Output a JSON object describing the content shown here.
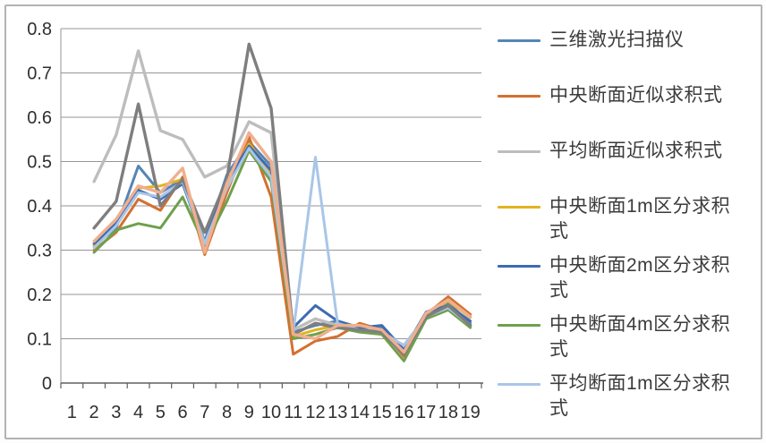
{
  "chart_data": {
    "type": "line",
    "title": "",
    "x_categories": [
      "1",
      "2",
      "3",
      "4",
      "5",
      "6",
      "7",
      "8",
      "9",
      "10",
      "11",
      "12",
      "13",
      "14",
      "15",
      "16",
      "17",
      "18",
      "19"
    ],
    "ylim": [
      0,
      0.8
    ],
    "ytick_labels": [
      "0",
      "0.1",
      "0.2",
      "0.3",
      "0.4",
      "0.5",
      "0.6",
      "0.7",
      "0.8"
    ],
    "grid": true,
    "legend_position": "right",
    "series": [
      {
        "name": "三维激光扫描仪",
        "color": "#5586B4",
        "in_legend": true,
        "values": [
          null,
          0.31,
          0.35,
          0.49,
          0.43,
          0.46,
          0.32,
          0.47,
          0.545,
          0.49,
          0.115,
          0.13,
          0.14,
          0.125,
          0.125,
          0.07,
          0.16,
          0.18,
          0.135
        ]
      },
      {
        "name": "中央断面近似求积式",
        "color": "#D4702F",
        "in_legend": true,
        "values": [
          null,
          0.3,
          0.34,
          0.415,
          0.39,
          0.465,
          0.29,
          0.43,
          0.555,
          0.42,
          0.065,
          0.095,
          0.105,
          0.135,
          0.12,
          0.06,
          0.155,
          0.195,
          0.155
        ]
      },
      {
        "name": "平均断面近似求积式",
        "color": "#BDBDBD",
        "in_legend": true,
        "values": [
          null,
          0.455,
          0.56,
          0.75,
          0.57,
          0.55,
          0.465,
          0.49,
          0.59,
          0.565,
          0.12,
          0.145,
          0.13,
          0.12,
          0.11,
          0.085,
          0.15,
          0.17,
          0.13
        ]
      },
      {
        "name": "中央断面1m区分求积式",
        "color": "#E0B41F",
        "in_legend": true,
        "values": [
          null,
          0.31,
          0.36,
          0.44,
          0.445,
          0.46,
          0.3,
          0.445,
          0.54,
          0.475,
          0.105,
          0.12,
          0.13,
          0.12,
          0.115,
          0.065,
          0.155,
          0.185,
          0.148
        ]
      },
      {
        "name": "中央断面2m区分求积式",
        "color": "#3E6BB2",
        "in_legend": true,
        "values": [
          null,
          0.315,
          0.36,
          0.435,
          0.415,
          0.45,
          0.315,
          0.455,
          0.535,
          0.48,
          0.125,
          0.175,
          0.14,
          0.125,
          0.13,
          0.075,
          0.16,
          0.175,
          0.14
        ]
      },
      {
        "name": "中央断面4m区分求积式",
        "color": "#6FA04C",
        "in_legend": true,
        "values": [
          null,
          0.295,
          0.345,
          0.36,
          0.35,
          0.42,
          0.31,
          0.41,
          0.525,
          0.455,
          0.1,
          0.11,
          0.125,
          0.115,
          0.11,
          0.05,
          0.145,
          0.165,
          0.125
        ]
      },
      {
        "name": "平均断面1m区分求积式",
        "color": "#A9C6E8",
        "in_legend": true,
        "values": [
          null,
          0.305,
          0.355,
          0.43,
          0.42,
          0.455,
          0.315,
          0.44,
          0.53,
          0.465,
          0.115,
          0.51,
          0.135,
          0.12,
          0.115,
          0.085,
          0.15,
          0.17,
          0.13
        ]
      },
      {
        "name": "",
        "color": "#7E7E7E",
        "in_legend": false,
        "values": [
          null,
          0.35,
          0.41,
          0.63,
          0.4,
          0.46,
          0.34,
          0.46,
          0.765,
          0.62,
          0.11,
          0.135,
          0.125,
          0.12,
          0.115,
          0.065,
          0.15,
          0.175,
          0.13
        ]
      },
      {
        "name": "",
        "color": "#F0AF8E",
        "in_legend": false,
        "values": [
          null,
          0.32,
          0.37,
          0.445,
          0.43,
          0.485,
          0.295,
          0.45,
          0.565,
          0.5,
          0.11,
          0.1,
          0.13,
          0.13,
          0.12,
          0.07,
          0.158,
          0.188,
          0.15
        ]
      }
    ]
  },
  "style_colors": {
    "gridline": "#969696",
    "axis_line": "#5f5f5f",
    "axis_text": "#2f2f2f",
    "frame_border": "#b3b3b3",
    "legend_text": "#3b3b3b",
    "background": "#ffffff"
  }
}
